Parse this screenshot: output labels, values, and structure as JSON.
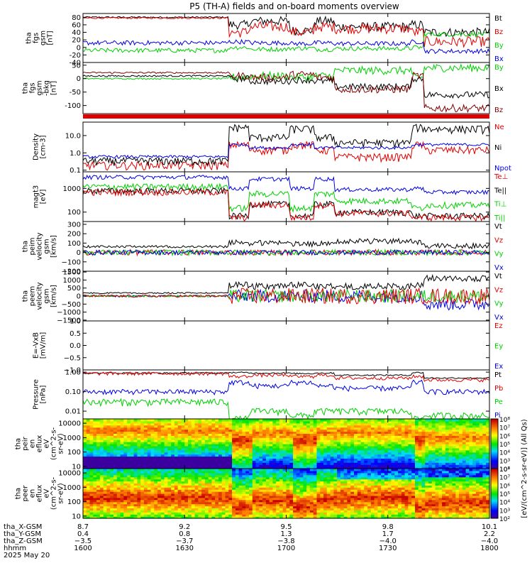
{
  "title": "P5 (TH-A) fields and on-board moments overview",
  "colors": {
    "black": "#000000",
    "red": "#e00000",
    "green": "#00d000",
    "blue": "#0000e0",
    "darkred": "#800000",
    "axis": "#000000"
  },
  "chart_data": [
    {
      "id": "fgs_gsm",
      "type": "line",
      "ylabel": [
        "tha",
        "fgs",
        "gsm",
        "[nT]"
      ],
      "ylim": [
        -40,
        90
      ],
      "yticks": [
        80,
        60,
        40,
        20,
        0,
        -20,
        -40
      ],
      "legend": [
        {
          "name": "Bt",
          "color": "#000000"
        },
        {
          "name": "Bz",
          "color": "#e00000"
        },
        {
          "name": "By",
          "color": "#00d000"
        },
        {
          "name": "Bx",
          "color": "#0000e0"
        }
      ]
    },
    {
      "id": "fgs_gsm_bkg",
      "type": "line",
      "ylabel": [
        "tha",
        "fgs",
        "gsm",
        "-bkg",
        "[nT]"
      ],
      "ylim": [
        -130,
        60
      ],
      "yticks": [
        50,
        0,
        -50,
        -100
      ],
      "legend": [
        {
          "name": "By",
          "color": "#00d000"
        },
        {
          "name": "Bx",
          "color": "#000000"
        },
        {
          "name": "Bz",
          "color": "#800000"
        }
      ]
    },
    {
      "id": "mode_bar",
      "type": "bar",
      "color": "#e00000"
    },
    {
      "id": "density",
      "type": "line",
      "log": true,
      "ylabel": [
        "Density",
        "[cm-3]"
      ],
      "ylim": [
        0.08,
        60
      ],
      "yticks": [
        {
          "v": 10,
          "t": "10.0"
        },
        {
          "v": 1,
          "t": "1.0"
        },
        {
          "v": 0.1,
          "t": "0.1"
        }
      ],
      "legend": [
        {
          "name": "Ne",
          "color": "#e00000"
        },
        {
          "name": "Ni",
          "color": "#000000"
        },
        {
          "name": "Npot",
          "color": "#0000e0"
        }
      ]
    },
    {
      "id": "temp",
      "type": "line",
      "log": true,
      "ylabel": [
        "magt3",
        "[eV]"
      ],
      "ylim": [
        40,
        5000
      ],
      "yticks": [
        {
          "v": 1000,
          "t": "1000"
        },
        {
          "v": 100,
          "t": "100"
        }
      ],
      "legend": [
        {
          "name": "Te⊥",
          "color": "#e00000"
        },
        {
          "name": "Te||",
          "color": "#000000"
        },
        {
          "name": "Ti⊥",
          "color": "#00d000"
        },
        {
          "name": "Ti||",
          "color": "#00d000"
        }
      ]
    },
    {
      "id": "peim_velocity",
      "type": "line",
      "ylabel": [
        "tha",
        "peim",
        "velocity",
        "gsm",
        "[km/s]"
      ],
      "ylim": [
        -200,
        330
      ],
      "yticks": [
        300,
        200,
        100,
        0,
        -100,
        -200
      ],
      "ytick_labels": [
        "300",
        "200",
        "100",
        "0",
        "−100",
        "−200"
      ],
      "legend": [
        {
          "name": "Vt",
          "color": "#000000"
        },
        {
          "name": "Vz",
          "color": "#e00000"
        },
        {
          "name": "Vy",
          "color": "#00d000"
        },
        {
          "name": "Vx",
          "color": "#0000e0"
        }
      ]
    },
    {
      "id": "peem_velocity",
      "type": "line",
      "ylabel": [
        "tha",
        "peem",
        "velocity",
        "gsm",
        "[km/s]"
      ],
      "ylim": [
        -1550,
        1550
      ],
      "yticks": [
        1500,
        1000,
        500,
        0,
        -500,
        -1000,
        -1500
      ],
      "ytick_labels": [
        "1500",
        "1000",
        "500",
        "0",
        "−500",
        "−1000",
        "−1500"
      ],
      "legend": [
        {
          "name": "Vt",
          "color": "#000000"
        },
        {
          "name": "Vz",
          "color": "#e00000"
        },
        {
          "name": "Vy",
          "color": "#00d000"
        },
        {
          "name": "Vx",
          "color": "#0000e0"
        }
      ]
    },
    {
      "id": "efield",
      "type": "line",
      "ylabel": [
        "E=-VxB",
        "[mV/m]"
      ],
      "ylim": [
        -1,
        1
      ],
      "yticks": [
        1.0,
        0.5,
        0.0,
        -0.5,
        -1.0
      ],
      "ytick_labels": [
        "1.0",
        "0.5",
        "0.0",
        "−0.5",
        "−1.0"
      ],
      "legend": [
        {
          "name": "Ez",
          "color": "#e00000"
        },
        {
          "name": "Ey",
          "color": "#00d000"
        },
        {
          "name": "Ex",
          "color": "#0000e0"
        }
      ]
    },
    {
      "id": "pressure",
      "type": "line",
      "log": true,
      "ylabel": [
        "Pressure",
        "[nPa]"
      ],
      "ylim": [
        0.004,
        1.3
      ],
      "yticks": [
        {
          "v": 1,
          "t": "1.00"
        },
        {
          "v": 0.1,
          "t": "0.10"
        },
        {
          "v": 0.01,
          "t": "0.01"
        }
      ],
      "legend": [
        {
          "name": "Pt",
          "color": "#000000"
        },
        {
          "name": "Pb",
          "color": "#e00000"
        },
        {
          "name": "Pe",
          "color": "#00d000"
        },
        {
          "name": "Pi",
          "color": "#0000e0"
        }
      ]
    },
    {
      "id": "peir_eflux",
      "type": "heatmap",
      "ylabel": [
        "tha",
        "peir",
        "en",
        "eflux",
        "eV",
        "(cm^2-s-",
        "sr-eV)"
      ],
      "ylim": [
        7,
        20000
      ],
      "yticks": [
        {
          "v": 10000,
          "t": "10000"
        },
        {
          "v": 1000,
          "t": "1000"
        },
        {
          "v": 100,
          "t": "100"
        },
        {
          "v": 10,
          "t": "10"
        }
      ]
    },
    {
      "id": "peer_eflux",
      "type": "heatmap",
      "ylabel": [
        "tha",
        "peer",
        "en",
        "eflux",
        "eV",
        "(cm^2-s-",
        "sr-eV)"
      ],
      "ylim": [
        7,
        20000
      ],
      "yticks": [
        {
          "v": 10000,
          "t": "10000"
        },
        {
          "v": 1000,
          "t": "1000"
        },
        {
          "v": 100,
          "t": "100"
        },
        {
          "v": 10,
          "t": "10"
        }
      ]
    }
  ],
  "colorbar": {
    "label": "[eV/(cm^2-s-sr-eV)] (All Qs)",
    "top": {
      "min": 2,
      "max": 8,
      "ticks": [
        "10⁸",
        "10⁷",
        "10⁶",
        "10⁵",
        "10⁴",
        "10³",
        "10²"
      ]
    },
    "bottom": {
      "min": 2,
      "max": 8,
      "ticks": [
        "10⁸",
        "10⁷",
        "10⁶",
        "10⁵",
        "10⁴",
        "10³",
        "10²"
      ]
    }
  },
  "xaxis": {
    "rows": [
      {
        "label": "tha_X-GSM",
        "values": [
          "8.7",
          "9.2",
          "9.5",
          "9.8",
          "10.1"
        ]
      },
      {
        "label": "tha_Y-GSM",
        "values": [
          "0.4",
          "0.8",
          "1.3",
          "1.7",
          "2.2"
        ]
      },
      {
        "label": "tha_Z-GSM",
        "values": [
          "−3.5",
          "−3.7",
          "−3.8",
          "−4.0",
          "−4.0"
        ]
      },
      {
        "label": "hhmm",
        "values": [
          "1600",
          "1630",
          "1700",
          "1730",
          "1800"
        ]
      }
    ],
    "date": "2025 May 20",
    "tick_minutes": [
      0,
      30,
      60,
      90,
      120
    ]
  }
}
